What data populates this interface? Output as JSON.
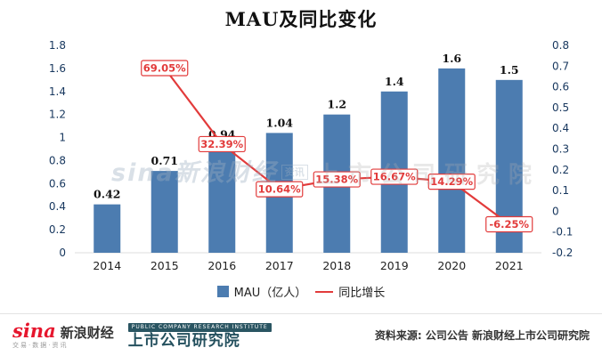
{
  "chart_data": {
    "type": "bar+line",
    "title": "MAU及同比变化",
    "categories": [
      "2014",
      "2015",
      "2016",
      "2017",
      "2018",
      "2019",
      "2020",
      "2021"
    ],
    "series": [
      {
        "name": "MAU（亿人）",
        "type": "bar",
        "axis": "left",
        "color": "#4c7cb0",
        "values": [
          0.42,
          0.71,
          0.94,
          1.04,
          1.2,
          1.4,
          1.6,
          1.5
        ],
        "labels": [
          "0.42",
          "0.71",
          "0.94",
          "1.04",
          "1.2",
          "1.4",
          "1.6",
          "1.5"
        ]
      },
      {
        "name": "同比增长",
        "type": "line",
        "axis": "right",
        "color": "#e23b3b",
        "values": [
          null,
          0.6905,
          0.3239,
          0.1064,
          0.1538,
          0.1667,
          0.1429,
          -0.0625
        ],
        "labels": [
          null,
          "69.05%",
          "32.39%",
          "10.64%",
          "15.38%",
          "16.67%",
          "14.29%",
          "-6.25%"
        ]
      }
    ],
    "left_axis": {
      "min": 0,
      "max": 1.8,
      "ticks": [
        "0",
        "0.2",
        "0.4",
        "0.6",
        "0.8",
        "1",
        "1.2",
        "1.4",
        "1.6",
        "1.8"
      ]
    },
    "right_axis": {
      "min": -0.2,
      "max": 0.8,
      "ticks": [
        "-0.2",
        "-0.1",
        "0",
        "0.1",
        "0.2",
        "0.3",
        "0.4",
        "0.5",
        "0.6",
        "0.7",
        "0.8"
      ]
    },
    "grid": false,
    "legend_position": "bottom"
  },
  "legend": {
    "bar_label": "MAU（亿人）",
    "line_label": "同比增长"
  },
  "watermark": {
    "left": "sina新浪财经",
    "left_tag": "资讯",
    "right": "上市公司研究院"
  },
  "footer": {
    "sina_word": "sina",
    "sina_cn": "新浪财经",
    "sina_tag": "交易·数据·资讯",
    "institute_sub": "PUBLIC COMPANY RESEARCH INSTITUTE",
    "institute_name": "上市公司研究院",
    "source": "资料来源: 公司公告 新浪财经上市公司研究院"
  },
  "colors": {
    "bar": "#4c7cb0",
    "line": "#e23b3b",
    "axis_text": "#17375e",
    "category_text": "#222222",
    "bar_label_text": "#111111"
  }
}
